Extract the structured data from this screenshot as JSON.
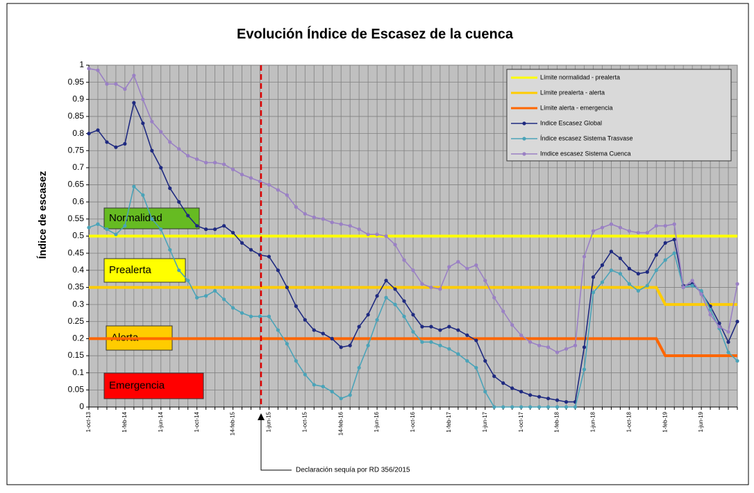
{
  "chart_data": {
    "type": "line",
    "title": "Evolución Índice de Escasez de la cuenca",
    "y_label": "Índice de escasez",
    "categories": [
      "1-oct-13",
      null,
      null,
      null,
      "1-feb-14",
      null,
      null,
      null,
      "1-jun-14",
      null,
      null,
      null,
      "1-oct-14",
      null,
      null,
      null,
      "14-feb-15",
      null,
      null,
      null,
      "1-jun-15",
      null,
      null,
      null,
      "1-oct-15",
      null,
      null,
      null,
      "14-feb-16",
      null,
      null,
      null,
      "1-jun-16",
      null,
      null,
      null,
      "1-oct-16",
      null,
      null,
      null,
      "1-feb-17",
      null,
      null,
      null,
      "1-jun-17",
      null,
      null,
      null,
      "1-oct-17",
      null,
      null,
      null,
      "1-feb-18",
      null,
      null,
      null,
      "1-jun-18",
      null,
      null,
      null,
      "1-oct-18",
      null,
      null,
      null,
      "1-feb-19",
      null,
      null,
      null,
      "1-jun-19",
      null,
      null,
      null,
      null
    ],
    "ylim": [
      0,
      1
    ],
    "yticks": [
      0,
      0.05,
      0.1,
      0.15,
      0.2,
      0.25,
      0.3,
      0.35,
      0.4,
      0.45,
      0.5,
      0.55,
      0.6,
      0.65,
      0.7,
      0.75,
      0.8,
      0.85,
      0.9,
      0.95,
      1
    ],
    "grid": true,
    "legend": "top-right",
    "series": [
      {
        "name": "Límite normalidad - prealerta",
        "color": "#ffff00",
        "marker": false,
        "values": [
          0.5,
          0.5,
          0.5,
          0.5,
          0.5,
          0.5,
          0.5,
          0.5,
          0.5,
          0.5,
          0.5,
          0.5,
          0.5,
          0.5,
          0.5,
          0.5,
          0.5,
          0.5,
          0.5,
          0.5,
          0.5,
          0.5,
          0.5,
          0.5,
          0.5,
          0.5,
          0.5,
          0.5,
          0.5,
          0.5,
          0.5,
          0.5,
          0.5,
          0.5,
          0.5,
          0.5,
          0.5,
          0.5,
          0.5,
          0.5,
          0.5,
          0.5,
          0.5,
          0.5,
          0.5,
          0.5,
          0.5,
          0.5,
          0.5,
          0.5,
          0.5,
          0.5,
          0.5,
          0.5,
          0.5,
          0.5,
          0.5,
          0.5,
          0.5,
          0.5,
          0.5,
          0.5,
          0.5,
          0.5,
          0.5,
          0.5,
          0.5,
          0.5,
          0.5,
          0.5,
          0.5,
          0.5,
          0.5
        ]
      },
      {
        "name": "Límite prealerta - alerta",
        "color": "#ffcc00",
        "marker": false,
        "values": [
          0.35,
          0.35,
          0.35,
          0.35,
          0.35,
          0.35,
          0.35,
          0.35,
          0.35,
          0.35,
          0.35,
          0.35,
          0.35,
          0.35,
          0.35,
          0.35,
          0.35,
          0.35,
          0.35,
          0.35,
          0.35,
          0.35,
          0.35,
          0.35,
          0.35,
          0.35,
          0.35,
          0.35,
          0.35,
          0.35,
          0.35,
          0.35,
          0.35,
          0.35,
          0.35,
          0.35,
          0.35,
          0.35,
          0.35,
          0.35,
          0.35,
          0.35,
          0.35,
          0.35,
          0.35,
          0.35,
          0.35,
          0.35,
          0.35,
          0.35,
          0.35,
          0.35,
          0.35,
          0.35,
          0.35,
          0.35,
          0.35,
          0.35,
          0.35,
          0.35,
          0.35,
          0.35,
          0.35,
          0.35,
          0.3,
          0.3,
          0.3,
          0.3,
          0.3,
          0.3,
          0.3,
          0.3,
          0.3
        ]
      },
      {
        "name": "Límite alerta - emergencia",
        "color": "#ff6600",
        "marker": false,
        "values": [
          0.2,
          0.2,
          0.2,
          0.2,
          0.2,
          0.2,
          0.2,
          0.2,
          0.2,
          0.2,
          0.2,
          0.2,
          0.2,
          0.2,
          0.2,
          0.2,
          0.2,
          0.2,
          0.2,
          0.2,
          0.2,
          0.2,
          0.2,
          0.2,
          0.2,
          0.2,
          0.2,
          0.2,
          0.2,
          0.2,
          0.2,
          0.2,
          0.2,
          0.2,
          0.2,
          0.2,
          0.2,
          0.2,
          0.2,
          0.2,
          0.2,
          0.2,
          0.2,
          0.2,
          0.2,
          0.2,
          0.2,
          0.2,
          0.2,
          0.2,
          0.2,
          0.2,
          0.2,
          0.2,
          0.2,
          0.2,
          0.2,
          0.2,
          0.2,
          0.2,
          0.2,
          0.2,
          0.2,
          0.2,
          0.15,
          0.15,
          0.15,
          0.15,
          0.15,
          0.15,
          0.15,
          0.15,
          0.15
        ]
      },
      {
        "name": "Indice Escasez Global",
        "color": "#1f2a80",
        "marker": true,
        "values": [
          0.8,
          0.81,
          0.775,
          0.76,
          0.77,
          0.89,
          0.83,
          0.75,
          0.7,
          0.64,
          0.6,
          0.56,
          0.53,
          0.52,
          0.52,
          0.53,
          0.51,
          0.48,
          0.46,
          0.445,
          0.44,
          0.4,
          0.35,
          0.295,
          0.255,
          0.225,
          0.215,
          0.2,
          0.175,
          0.18,
          0.235,
          0.27,
          0.325,
          0.37,
          0.345,
          0.31,
          0.27,
          0.235,
          0.235,
          0.225,
          0.235,
          0.225,
          0.21,
          0.195,
          0.135,
          0.09,
          0.07,
          0.055,
          0.045,
          0.035,
          0.03,
          0.025,
          0.02,
          0.015,
          0.015,
          0.175,
          0.38,
          0.415,
          0.455,
          0.435,
          0.405,
          0.39,
          0.395,
          0.445,
          0.48,
          0.49,
          0.355,
          0.36,
          0.335,
          0.295,
          0.245,
          0.19,
          0.25
        ]
      },
      {
        "name": "Índice escasez Sistema Trasvase",
        "color": "#4aa3b8",
        "marker": true,
        "values": [
          0.525,
          0.535,
          0.52,
          0.505,
          0.53,
          0.645,
          0.62,
          0.55,
          0.52,
          0.46,
          0.4,
          0.37,
          0.32,
          0.325,
          0.34,
          0.315,
          0.29,
          0.275,
          0.265,
          0.265,
          0.265,
          0.225,
          0.185,
          0.135,
          0.095,
          0.065,
          0.06,
          0.045,
          0.025,
          0.035,
          0.115,
          0.18,
          0.255,
          0.32,
          0.3,
          0.265,
          0.22,
          0.19,
          0.19,
          0.18,
          0.17,
          0.155,
          0.135,
          0.115,
          0.045,
          0,
          0,
          0,
          0,
          0,
          0,
          0,
          0,
          0,
          0,
          0.11,
          0.335,
          0.365,
          0.4,
          0.39,
          0.36,
          0.34,
          0.355,
          0.4,
          0.43,
          0.45,
          0.35,
          0.355,
          0.34,
          0.285,
          0.23,
          0.16,
          0.135
        ]
      },
      {
        "name": "Imdice escasez Sistema Cuenca",
        "color": "#9a80c4",
        "marker": true,
        "values": [
          0.99,
          0.985,
          0.945,
          0.945,
          0.93,
          0.97,
          0.9,
          0.835,
          0.805,
          0.775,
          0.755,
          0.735,
          0.725,
          0.715,
          0.715,
          0.71,
          0.695,
          0.68,
          0.67,
          0.66,
          0.65,
          0.635,
          0.62,
          0.585,
          0.565,
          0.555,
          0.55,
          0.54,
          0.535,
          0.53,
          0.52,
          0.505,
          0.505,
          0.5,
          0.475,
          0.43,
          0.4,
          0.36,
          0.35,
          0.345,
          0.41,
          0.425,
          0.405,
          0.415,
          0.37,
          0.32,
          0.28,
          0.24,
          0.21,
          0.19,
          0.18,
          0.175,
          0.16,
          0.17,
          0.18,
          0.44,
          0.515,
          0.525,
          0.535,
          0.525,
          0.515,
          0.51,
          0.51,
          0.53,
          0.53,
          0.535,
          0.35,
          0.37,
          0.33,
          0.27,
          0.235,
          0.22,
          0.36
        ]
      }
    ],
    "zone_labels": [
      {
        "text": "Normalidad",
        "color": "#66bb22"
      },
      {
        "text": "Prealerta",
        "color": "#ffff00"
      },
      {
        "text": "Alerta",
        "color": "#ffcc00"
      },
      {
        "text": "Emergencia",
        "color": "#ff0000"
      }
    ],
    "annotation": "Declaración sequía por RD 356/2015"
  }
}
